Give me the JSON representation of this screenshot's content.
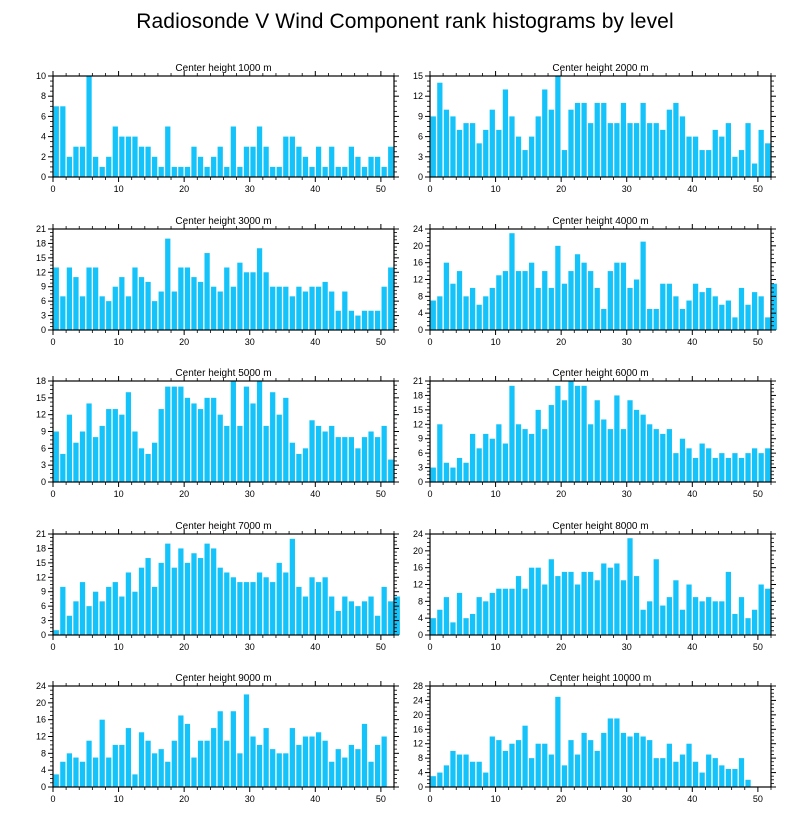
{
  "title": "Radiosonde V Wind Component rank histograms by level",
  "bar_color": "#14C3FA",
  "chart_data": [
    {
      "type": "bar",
      "title": "Center height 1000 m",
      "ylim": [
        0,
        10
      ],
      "yticks": [
        0,
        2,
        4,
        6,
        8,
        10
      ],
      "xlim": [
        0,
        52
      ],
      "xticks": [
        0,
        10,
        20,
        30,
        40,
        50
      ],
      "values": [
        7,
        7,
        2,
        3,
        3,
        10,
        2,
        1,
        2,
        5,
        4,
        4,
        4,
        3,
        3,
        2,
        1,
        5,
        1,
        1,
        1,
        3,
        2,
        1,
        2,
        3,
        1,
        5,
        1,
        3,
        3,
        5,
        3,
        1,
        1,
        4,
        4,
        3,
        2,
        1,
        3,
        1,
        3,
        1,
        1,
        3,
        2,
        1,
        2,
        2,
        1,
        3
      ]
    },
    {
      "type": "bar",
      "title": "Center height 2000 m",
      "ylim": [
        0,
        15
      ],
      "yticks": [
        0,
        3,
        6,
        9,
        12,
        15
      ],
      "xlim": [
        0,
        52
      ],
      "xticks": [
        0,
        10,
        20,
        30,
        40,
        50
      ],
      "values": [
        9,
        14,
        10,
        9,
        7,
        8,
        8,
        5,
        7,
        10,
        7,
        13,
        9,
        6,
        4,
        6,
        9,
        13,
        10,
        15,
        4,
        10,
        11,
        11,
        8,
        11,
        11,
        8,
        8,
        11,
        8,
        8,
        11,
        8,
        8,
        7,
        10,
        11,
        9,
        6,
        6,
        4,
        4,
        7,
        6,
        8,
        3,
        4,
        8,
        2,
        7,
        5
      ]
    },
    {
      "type": "bar",
      "title": "Center height 3000 m",
      "ylim": [
        0,
        21
      ],
      "yticks": [
        0,
        3,
        6,
        9,
        12,
        15,
        18,
        21
      ],
      "xlim": [
        0,
        52
      ],
      "xticks": [
        0,
        10,
        20,
        30,
        40,
        50
      ],
      "values": [
        13,
        7,
        13,
        11,
        7,
        13,
        13,
        7,
        6,
        9,
        11,
        7,
        13,
        11,
        10,
        6,
        8,
        19,
        8,
        13,
        13,
        11,
        10,
        16,
        9,
        8,
        13,
        9,
        14,
        12,
        12,
        17,
        12,
        9,
        9,
        9,
        7,
        9,
        8,
        9,
        9,
        10,
        8,
        4,
        8,
        4,
        3,
        4,
        4,
        4,
        9,
        13
      ]
    },
    {
      "type": "bar",
      "title": "Center height 4000 m",
      "ylim": [
        0,
        24
      ],
      "yticks": [
        0,
        4,
        8,
        12,
        16,
        20,
        24
      ],
      "xlim": [
        0,
        52
      ],
      "xticks": [
        0,
        10,
        20,
        30,
        40,
        50
      ],
      "values": [
        7,
        8,
        16,
        11,
        14,
        8,
        10,
        6,
        8,
        10,
        13,
        14,
        23,
        14,
        14,
        16,
        10,
        14,
        10,
        20,
        11,
        14,
        18,
        16,
        14,
        10,
        5,
        14,
        16,
        16,
        10,
        12,
        21,
        5,
        5,
        11,
        11,
        8,
        5,
        7,
        11,
        9,
        10,
        8,
        6,
        7,
        3,
        10,
        6,
        9,
        8,
        3,
        11
      ]
    },
    {
      "type": "bar",
      "title": "Center height 5000 m",
      "ylim": [
        0,
        18
      ],
      "yticks": [
        0,
        3,
        6,
        9,
        12,
        15,
        18
      ],
      "xlim": [
        0,
        52
      ],
      "xticks": [
        0,
        10,
        20,
        30,
        40,
        50
      ],
      "values": [
        9,
        5,
        12,
        7,
        9,
        14,
        8,
        10,
        13,
        13,
        12,
        16,
        9,
        6,
        5,
        7,
        13,
        17,
        17,
        17,
        15,
        14,
        13,
        15,
        15,
        12,
        10,
        18,
        10,
        17,
        14,
        18,
        10,
        16,
        12,
        15,
        7,
        5,
        6,
        11,
        10,
        9,
        10,
        8,
        8,
        8,
        6,
        8,
        9,
        8,
        10,
        4
      ]
    },
    {
      "type": "bar",
      "title": "Center height 6000 m",
      "ylim": [
        0,
        21
      ],
      "yticks": [
        0,
        3,
        6,
        9,
        12,
        15,
        18,
        21
      ],
      "xlim": [
        0,
        52
      ],
      "xticks": [
        0,
        10,
        20,
        30,
        40,
        50
      ],
      "values": [
        3,
        12,
        4,
        3,
        5,
        4,
        10,
        7,
        10,
        9,
        12,
        8,
        20,
        12,
        11,
        10,
        15,
        11,
        16,
        20,
        17,
        21,
        20,
        20,
        12,
        17,
        13,
        11,
        18,
        11,
        17,
        15,
        14,
        12,
        11,
        10,
        11,
        6,
        9,
        7,
        5,
        8,
        7,
        5,
        6,
        5,
        6,
        5,
        6,
        7,
        6,
        7
      ]
    },
    {
      "type": "bar",
      "title": "Center height 7000 m",
      "ylim": [
        0,
        21
      ],
      "yticks": [
        0,
        3,
        6,
        9,
        12,
        15,
        18,
        21
      ],
      "xlim": [
        0,
        52
      ],
      "xticks": [
        0,
        10,
        20,
        30,
        40,
        50
      ],
      "values": [
        1,
        10,
        4,
        7,
        11,
        6,
        9,
        7,
        10,
        11,
        8,
        13,
        9,
        14,
        16,
        10,
        15,
        19,
        14,
        18,
        15,
        17,
        16,
        19,
        18,
        14,
        13,
        12,
        11,
        11,
        11,
        13,
        12,
        11,
        15,
        13,
        20,
        10,
        8,
        12,
        11,
        12,
        8,
        5,
        8,
        7,
        6,
        7,
        8,
        4,
        10,
        7,
        8
      ]
    },
    {
      "type": "bar",
      "title": "Center height 8000 m",
      "ylim": [
        0,
        24
      ],
      "yticks": [
        0,
        4,
        8,
        12,
        16,
        20,
        24
      ],
      "xlim": [
        0,
        52
      ],
      "xticks": [
        0,
        10,
        20,
        30,
        40,
        50
      ],
      "values": [
        4,
        6,
        9,
        3,
        10,
        4,
        5,
        9,
        8,
        10,
        11,
        11,
        11,
        14,
        11,
        16,
        16,
        12,
        18,
        14,
        15,
        15,
        12,
        15,
        15,
        13,
        17,
        16,
        17,
        13,
        23,
        14,
        6,
        8,
        18,
        7,
        9,
        13,
        6,
        12,
        9,
        8,
        9,
        8,
        8,
        15,
        5,
        9,
        4,
        6,
        12,
        11
      ]
    },
    {
      "type": "bar",
      "title": "Center height 9000 m",
      "ylim": [
        0,
        24
      ],
      "yticks": [
        0,
        4,
        8,
        12,
        16,
        20,
        24
      ],
      "xlim": [
        0,
        52
      ],
      "xticks": [
        0,
        10,
        20,
        30,
        40,
        50
      ],
      "values": [
        3,
        6,
        8,
        7,
        6,
        11,
        7,
        16,
        7,
        10,
        10,
        14,
        3,
        13,
        11,
        8,
        9,
        6,
        11,
        17,
        15,
        7,
        11,
        11,
        14,
        18,
        11,
        18,
        8,
        22,
        12,
        10,
        14,
        9,
        8,
        8,
        14,
        10,
        12,
        12,
        13,
        11,
        6,
        9,
        7,
        10,
        9,
        15,
        6,
        10,
        12
      ]
    },
    {
      "type": "bar",
      "title": "Center height 10000 m",
      "ylim": [
        0,
        28
      ],
      "yticks": [
        0,
        4,
        8,
        12,
        16,
        20,
        24,
        28
      ],
      "xlim": [
        0,
        52
      ],
      "xticks": [
        0,
        10,
        20,
        30,
        40,
        50
      ],
      "values": [
        3,
        4,
        6,
        10,
        9,
        9,
        7,
        7,
        4,
        14,
        13,
        10,
        12,
        13,
        17,
        8,
        12,
        12,
        9,
        25,
        6,
        13,
        9,
        15,
        13,
        10,
        15,
        19,
        19,
        15,
        14,
        15,
        14,
        13,
        8,
        8,
        12,
        7,
        9,
        12,
        7,
        4,
        9,
        8,
        6,
        5,
        5,
        8,
        2
      ]
    }
  ]
}
